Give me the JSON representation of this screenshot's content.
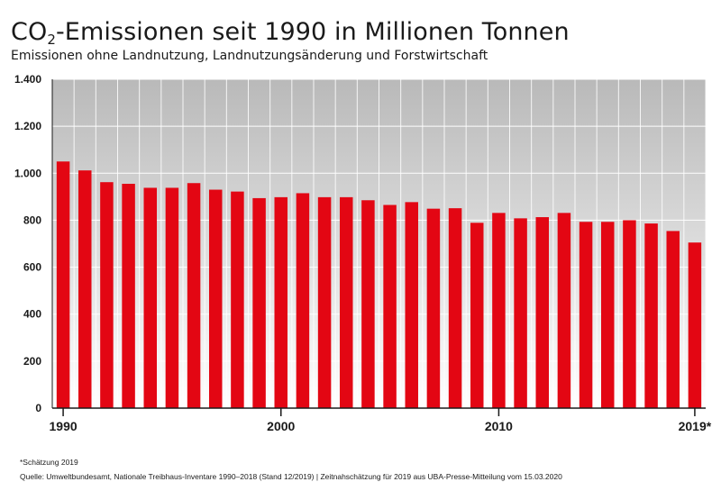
{
  "title": {
    "prefix": "CO",
    "subscript": "2",
    "suffix": "-Emissionen seit 1990 in Millionen Tonnen"
  },
  "subtitle": "Emissionen ohne Landnutzung, Landnutzungsänderung und Forstwirtschaft",
  "footnote": "*Schätzung 2019",
  "source": "Quelle: Umweltbundesamt, Nationale Treibhaus-Inventare 1990–2018 (Stand 12/2019) | Zeitnahschätzung für 2019 aus UBA-Presse-Mitteilung vom 15.03.2020",
  "colors": {
    "bar": "#e30613",
    "plot_gradient_top": "#b9b9b9",
    "plot_gradient_bottom": "#ffffff",
    "grid": "#ffffff",
    "axis": "#1a1a1a"
  },
  "chart_data": {
    "type": "bar",
    "x": [
      1990,
      1991,
      1992,
      1993,
      1994,
      1995,
      1996,
      1997,
      1998,
      1999,
      2000,
      2001,
      2002,
      2003,
      2004,
      2005,
      2006,
      2007,
      2008,
      2009,
      2010,
      2011,
      2012,
      2013,
      2014,
      2015,
      2016,
      2017,
      2018,
      2019
    ],
    "values": [
      1050,
      1012,
      962,
      955,
      938,
      938,
      958,
      930,
      922,
      894,
      898,
      915,
      898,
      898,
      885,
      865,
      877,
      849,
      851,
      789,
      831,
      808,
      813,
      831,
      793,
      793,
      800,
      786,
      754,
      705
    ],
    "x_tick_labels": [
      {
        "x": 1990,
        "label": "1990"
      },
      {
        "x": 2000,
        "label": "2000"
      },
      {
        "x": 2010,
        "label": "2010"
      },
      {
        "x": 2019,
        "label": "2019*"
      }
    ],
    "y_ticks": [
      0,
      200,
      400,
      600,
      800,
      1000,
      1200,
      1400
    ],
    "y_tick_labels": [
      "0",
      "200",
      "400",
      "600",
      "800",
      "1.000",
      "1.200",
      "1.400"
    ],
    "ylim": [
      0,
      1400
    ],
    "grid": true,
    "xlabel": "",
    "ylabel": ""
  }
}
